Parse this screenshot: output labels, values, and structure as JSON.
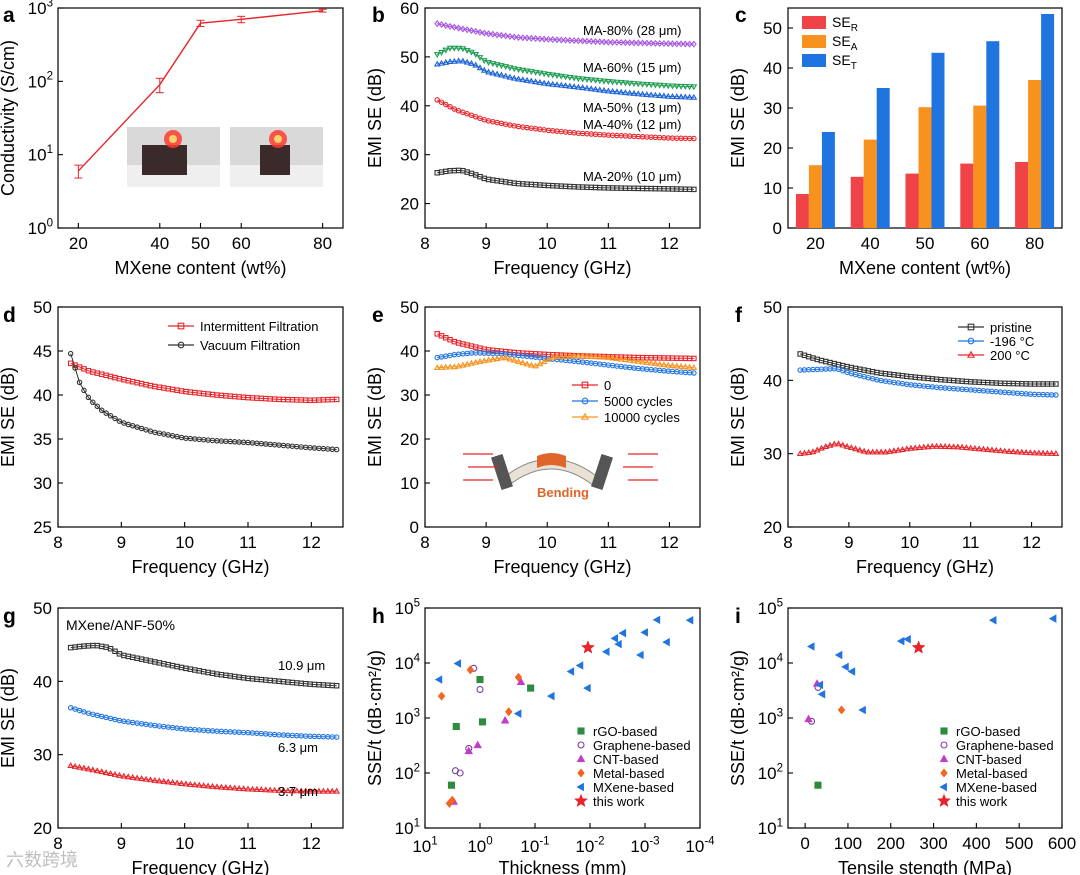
{
  "watermark": "六数跨境",
  "chart_data": [
    {
      "id": "a",
      "panel_label": "a",
      "type": "line",
      "xlabel": "MXene content (wt%)",
      "ylabel": "Conductivity (S/cm)",
      "xlim": [
        15,
        85
      ],
      "ylim": [
        1,
        1000
      ],
      "yscale": "log",
      "xticks": [
        "20",
        "40",
        "50",
        "60",
        "80"
      ],
      "yticks": [
        {
          "v": 1,
          "t": "10",
          "e": "0"
        },
        {
          "v": 10,
          "t": "10",
          "e": "1"
        },
        {
          "v": 100,
          "t": "10",
          "e": "2"
        },
        {
          "v": 1000,
          "t": "10",
          "e": "3"
        }
      ],
      "colors": {
        "line": "#e8242a"
      },
      "series": [
        {
          "x": [
            20,
            40,
            50,
            60,
            80
          ],
          "y": [
            6,
            90,
            620,
            700,
            920
          ],
          "err": [
            1.2,
            20,
            60,
            70,
            40
          ]
        }
      ]
    },
    {
      "id": "b",
      "panel_label": "b",
      "type": "line",
      "xlabel": "Frequency (GHz)",
      "ylabel": "EMI SE (dB)",
      "xlim": [
        8,
        12.5
      ],
      "ylim": [
        15,
        60
      ],
      "xticks": [
        "8",
        "9",
        "10",
        "11",
        "12"
      ],
      "yticks": [
        "20",
        "30",
        "40",
        "50",
        "60"
      ],
      "series": [
        {
          "name": "MA-80% (28 μm)",
          "color": "#a657e3",
          "marker": "diamond",
          "x": [
            8.2,
            8.5,
            9,
            9.5,
            10,
            11,
            12,
            12.4
          ],
          "y": [
            56.8,
            56.0,
            54.8,
            54.0,
            53.6,
            53.0,
            52.7,
            52.6
          ]
        },
        {
          "name": "MA-60% (15 μm)",
          "color": "#1f9e53",
          "marker": "triangle-down",
          "x": [
            8.2,
            8.4,
            8.6,
            8.8,
            9,
            9.5,
            10,
            10.5,
            11,
            11.5,
            12,
            12.4
          ],
          "y": [
            50.5,
            51.8,
            51.8,
            50.8,
            49.0,
            47.5,
            46.5,
            45.6,
            45.0,
            44.5,
            44.1,
            43.9
          ]
        },
        {
          "name": "MA-50% (13 μm)",
          "color": "#1b63d6",
          "marker": "triangle-up",
          "x": [
            8.2,
            8.4,
            8.6,
            8.8,
            9,
            9.5,
            10,
            10.5,
            11,
            11.5,
            12,
            12.4
          ],
          "y": [
            48.5,
            49.0,
            49.2,
            48.5,
            47.0,
            45.5,
            44.5,
            43.8,
            43.0,
            42.4,
            41.9,
            41.7
          ]
        },
        {
          "name": "MA-40% (12 μm)",
          "color": "#e8242a",
          "marker": "circle",
          "x": [
            8.2,
            8.5,
            9,
            9.5,
            10,
            10.5,
            11,
            11.5,
            12,
            12.4
          ],
          "y": [
            41.2,
            39.2,
            37.0,
            35.8,
            35.0,
            34.4,
            34.0,
            33.7,
            33.4,
            33.3
          ]
        },
        {
          "name": "MA-20% (10 μm)",
          "color": "#333333",
          "marker": "square",
          "x": [
            8.2,
            8.4,
            8.6,
            8.8,
            9,
            9.5,
            10,
            10.5,
            11,
            11.5,
            12,
            12.4
          ],
          "y": [
            26.3,
            26.7,
            26.8,
            26.0,
            25.0,
            24.1,
            23.7,
            23.4,
            23.2,
            23.1,
            23.0,
            22.9
          ]
        }
      ]
    },
    {
      "id": "c",
      "panel_label": "c",
      "type": "bar",
      "xlabel": "MXene content (wt%)",
      "ylabel": "EMI SE (dB)",
      "ylim": [
        0,
        55
      ],
      "yticks": [
        "0",
        "10",
        "20",
        "30",
        "40",
        "50"
      ],
      "categories": [
        "20",
        "40",
        "50",
        "60",
        "80"
      ],
      "legend_position": "top-left",
      "series": [
        {
          "name": "SE",
          "sub": "R",
          "color": "#ef4348",
          "values": [
            8.5,
            12.8,
            13.6,
            16.1,
            16.5
          ]
        },
        {
          "name": "SE",
          "sub": "A",
          "color": "#f7921e",
          "values": [
            15.7,
            22.1,
            30.2,
            30.6,
            37.0
          ]
        },
        {
          "name": "SE",
          "sub": "T",
          "color": "#1f74e0",
          "values": [
            24.0,
            35.0,
            43.8,
            46.7,
            53.5
          ]
        }
      ]
    },
    {
      "id": "d",
      "panel_label": "d",
      "type": "line",
      "xlabel": "Frequency (GHz)",
      "ylabel": "EMI SE (dB)",
      "xlim": [
        8,
        12.5
      ],
      "ylim": [
        25,
        50
      ],
      "xticks": [
        "8",
        "9",
        "10",
        "11",
        "12"
      ],
      "yticks": [
        "25",
        "30",
        "35",
        "40",
        "45",
        "50"
      ],
      "legend_position": "top-right",
      "series": [
        {
          "name": "Intermittent Filtration",
          "color": "#e8242a",
          "marker": "square",
          "x": [
            8.2,
            8.5,
            9,
            9.5,
            10,
            10.5,
            11,
            11.5,
            12,
            12.4
          ],
          "y": [
            43.6,
            42.7,
            41.8,
            41.0,
            40.4,
            40.0,
            39.7,
            39.5,
            39.4,
            39.5
          ]
        },
        {
          "name": "Vacuum Filtration",
          "color": "#333333",
          "marker": "circle",
          "x": [
            8.2,
            8.35,
            8.5,
            8.7,
            9,
            9.5,
            10,
            10.5,
            11,
            11.5,
            12,
            12.4
          ],
          "y": [
            44.7,
            41.2,
            39.5,
            38.2,
            36.9,
            35.8,
            35.1,
            34.8,
            34.6,
            34.3,
            34.0,
            33.8
          ]
        }
      ]
    },
    {
      "id": "e",
      "panel_label": "e",
      "type": "line",
      "xlabel": "Frequency (GHz)",
      "ylabel": "EMI SE (dB)",
      "xlim": [
        8,
        12.5
      ],
      "ylim": [
        0,
        50
      ],
      "xticks": [
        "8",
        "9",
        "10",
        "11",
        "12"
      ],
      "yticks": [
        "0",
        "10",
        "20",
        "30",
        "40",
        "50"
      ],
      "legend_position": "middle-center",
      "annotations": [
        "Bending"
      ],
      "series": [
        {
          "name": "0",
          "color": "#e8242a",
          "marker": "square",
          "x": [
            8.2,
            8.5,
            9,
            9.5,
            10,
            10.5,
            11,
            11.5,
            12,
            12.4
          ],
          "y": [
            43.9,
            42.0,
            40.3,
            39.6,
            39.2,
            38.9,
            38.7,
            38.5,
            38.4,
            38.3
          ]
        },
        {
          "name": "5000 cycles",
          "color": "#1f74e0",
          "marker": "circle",
          "x": [
            8.2,
            8.5,
            8.8,
            9.2,
            9.6,
            10,
            10.5,
            11,
            11.5,
            12,
            12.4
          ],
          "y": [
            38.5,
            39.2,
            39.6,
            39.4,
            38.9,
            38.3,
            37.6,
            36.8,
            36.0,
            35.4,
            35.0
          ]
        },
        {
          "name": "10000 cycles",
          "color": "#f7921e",
          "marker": "triangle-up",
          "x": [
            8.2,
            8.5,
            8.9,
            9.3,
            9.6,
            9.8,
            10.1,
            10.5,
            11,
            11.5,
            12,
            12.4
          ],
          "y": [
            36.2,
            36.4,
            37.6,
            38.5,
            37.3,
            36.5,
            38.6,
            38.9,
            38.5,
            37.6,
            36.7,
            36.2
          ]
        }
      ]
    },
    {
      "id": "f",
      "panel_label": "f",
      "type": "line",
      "xlabel": "Frequency (GHz)",
      "ylabel": "EMI SE (dB)",
      "xlim": [
        8,
        12.5
      ],
      "ylim": [
        20,
        50
      ],
      "xticks": [
        "8",
        "9",
        "10",
        "11",
        "12"
      ],
      "yticks": [
        "20",
        "30",
        "40",
        "50"
      ],
      "legend_position": "top-right",
      "series": [
        {
          "name": "pristine",
          "color": "#333333",
          "marker": "square",
          "x": [
            8.2,
            8.5,
            9,
            9.5,
            10,
            10.5,
            11,
            11.5,
            12,
            12.4
          ],
          "y": [
            43.6,
            42.8,
            41.8,
            41.0,
            40.5,
            40.1,
            39.8,
            39.6,
            39.5,
            39.5
          ]
        },
        {
          "name": "-196 °C",
          "color": "#1f74e0",
          "marker": "circle",
          "x": [
            8.2,
            8.5,
            8.8,
            9,
            9.5,
            10,
            10.5,
            11,
            11.5,
            12,
            12.4
          ],
          "y": [
            41.4,
            41.5,
            41.6,
            41.0,
            40.0,
            39.4,
            39.0,
            38.7,
            38.4,
            38.1,
            38.0
          ]
        },
        {
          "name": "200 °C",
          "color": "#e8242a",
          "marker": "triangle-up",
          "x": [
            8.2,
            8.4,
            8.6,
            8.8,
            9.0,
            9.3,
            9.6,
            10,
            10.4,
            10.8,
            11.2,
            11.6,
            12,
            12.4
          ],
          "y": [
            30.0,
            30.2,
            30.9,
            31.4,
            30.9,
            30.2,
            30.2,
            30.7,
            31.0,
            30.9,
            30.6,
            30.3,
            30.1,
            30.0
          ]
        }
      ]
    },
    {
      "id": "g",
      "panel_label": "g",
      "type": "line",
      "title": "MXene/ANF-50%",
      "xlabel": "Frequency (GHz)",
      "ylabel": "EMI SE (dB)",
      "xlim": [
        8,
        12.5
      ],
      "ylim": [
        20,
        50
      ],
      "xticks": [
        "8",
        "9",
        "10",
        "11",
        "12"
      ],
      "yticks": [
        "20",
        "30",
        "40",
        "50"
      ],
      "series": [
        {
          "name": "10.9 μm",
          "color": "#333333",
          "marker": "square",
          "x": [
            8.2,
            8.4,
            8.6,
            8.8,
            9,
            9.5,
            10,
            10.5,
            11,
            11.5,
            12,
            12.4
          ],
          "y": [
            44.6,
            44.8,
            44.9,
            44.6,
            43.6,
            42.7,
            41.8,
            41.0,
            40.4,
            40.0,
            39.6,
            39.4
          ]
        },
        {
          "name": "6.3 μm",
          "color": "#1f74e0",
          "marker": "circle",
          "x": [
            8.2,
            8.5,
            9,
            9.5,
            10,
            10.5,
            11,
            11.5,
            12,
            12.4
          ],
          "y": [
            36.4,
            35.6,
            34.6,
            34.0,
            33.5,
            33.2,
            33.0,
            32.7,
            32.5,
            32.4
          ]
        },
        {
          "name": "3.7 μm",
          "color": "#e8242a",
          "marker": "triangle-up",
          "x": [
            8.2,
            8.5,
            9,
            9.5,
            10,
            10.5,
            11,
            11.5,
            12,
            12.4
          ],
          "y": [
            28.5,
            28.0,
            27.1,
            26.5,
            26.0,
            25.6,
            25.3,
            25.1,
            25.0,
            25.0
          ]
        }
      ]
    },
    {
      "id": "h",
      "panel_label": "h",
      "type": "scatter",
      "xlabel": "Thickness (mm)",
      "ylabel": "SSE/t (dB·cm²/g)",
      "xscale": "log-reversed",
      "yscale": "log",
      "xlim": [
        10,
        0.0001
      ],
      "ylim": [
        10,
        100000
      ],
      "xticks": [
        {
          "v": 10,
          "t": "10",
          "e": "1"
        },
        {
          "v": 1,
          "t": "10",
          "e": "0"
        },
        {
          "v": 0.1,
          "t": "10",
          "e": "-1"
        },
        {
          "v": 0.01,
          "t": "10",
          "e": "-2"
        },
        {
          "v": 0.001,
          "t": "10",
          "e": "-3"
        },
        {
          "v": 0.0001,
          "t": "10",
          "e": "-4"
        }
      ],
      "yticks": [
        {
          "v": 10,
          "t": "10",
          "e": "1"
        },
        {
          "v": 100,
          "t": "10",
          "e": "2"
        },
        {
          "v": 1000,
          "t": "10",
          "e": "3"
        },
        {
          "v": 10000,
          "t": "10",
          "e": "4"
        },
        {
          "v": 100000,
          "t": "10",
          "e": "5"
        }
      ],
      "legend_position": "bottom-right",
      "series": [
        {
          "name": "rGO-based",
          "color": "#2e8a3e",
          "marker": "square",
          "x": [
            3.3,
            2.7,
            1.0,
            0.9,
            0.12
          ],
          "y": [
            60,
            700,
            5000,
            850,
            3500
          ]
        },
        {
          "name": "Graphene-based",
          "color": "#7a3fa0",
          "marker": "circle",
          "x": [
            2.8,
            2.3,
            1.6,
            1.3,
            1.0
          ],
          "y": [
            110,
            100,
            280,
            8000,
            3300
          ]
        },
        {
          "name": "CNT-based",
          "color": "#c33bc8",
          "marker": "triangle-up",
          "x": [
            3.0,
            1.6,
            1.1,
            0.35,
            0.18
          ],
          "y": [
            30,
            250,
            320,
            900,
            4500
          ]
        },
        {
          "name": "Metal-based",
          "color": "#f26522",
          "marker": "diamond",
          "x": [
            3.6,
            3.2,
            5.0,
            1.5,
            0.3,
            0.2
          ],
          "y": [
            28,
            32,
            2500,
            7500,
            1300,
            5500
          ]
        },
        {
          "name": "MXene-based",
          "color": "#1f74e0",
          "marker": "triangle-left",
          "x": [
            5.5,
            2.5,
            0.2,
            0.05,
            0.022,
            0.015,
            0.011,
            0.005,
            0.003,
            0.0035,
            0.0012,
            0.0025,
            0.001,
            0.0006,
            0.0004,
            0.00015
          ],
          "y": [
            5000,
            9800,
            1200,
            2500,
            7000,
            9000,
            3500,
            16000,
            22000,
            28000,
            14000,
            35000,
            36000,
            61000,
            24000,
            60000
          ]
        },
        {
          "name": "this work",
          "color": "#e8242a",
          "marker": "star",
          "x": [
            0.0109
          ],
          "y": [
            19000
          ]
        }
      ]
    },
    {
      "id": "i",
      "panel_label": "i",
      "type": "scatter",
      "xlabel": "Tensile stength (MPa)",
      "ylabel": "SSE/t (dB·cm²/g)",
      "yscale": "log",
      "xlim": [
        -40,
        600
      ],
      "ylim": [
        10,
        100000
      ],
      "xticks": [
        "0",
        "100",
        "200",
        "300",
        "400",
        "500",
        "600"
      ],
      "yticks": [
        {
          "v": 10,
          "t": "10",
          "e": "1"
        },
        {
          "v": 100,
          "t": "10",
          "e": "2"
        },
        {
          "v": 1000,
          "t": "10",
          "e": "3"
        },
        {
          "v": 10000,
          "t": "10",
          "e": "4"
        },
        {
          "v": 100000,
          "t": "10",
          "e": "5"
        }
      ],
      "legend_position": "bottom-center",
      "series": [
        {
          "name": "rGO-based",
          "color": "#2e8a3e",
          "marker": "square",
          "x": [
            30
          ],
          "y": [
            60
          ]
        },
        {
          "name": "Graphene-based",
          "color": "#7a3fa0",
          "marker": "circle",
          "x": [
            15,
            30
          ],
          "y": [
            870,
            3600
          ]
        },
        {
          "name": "CNT-based",
          "color": "#c33bc8",
          "marker": "triangle-up",
          "x": [
            8,
            28
          ],
          "y": [
            950,
            4200
          ]
        },
        {
          "name": "Metal-based",
          "color": "#f26522",
          "marker": "diamond",
          "x": [
            85
          ],
          "y": [
            1400
          ]
        },
        {
          "name": "MXene-based",
          "color": "#1f74e0",
          "marker": "triangle-left",
          "x": [
            15,
            35,
            40,
            80,
            95,
            110,
            135,
            225,
            240,
            440,
            580
          ],
          "y": [
            20000,
            4000,
            2700,
            14000,
            8500,
            7000,
            1400,
            25000,
            27000,
            60000,
            64000
          ]
        },
        {
          "name": "this work",
          "color": "#e8242a",
          "marker": "star",
          "x": [
            265
          ],
          "y": [
            19000
          ]
        }
      ]
    }
  ]
}
